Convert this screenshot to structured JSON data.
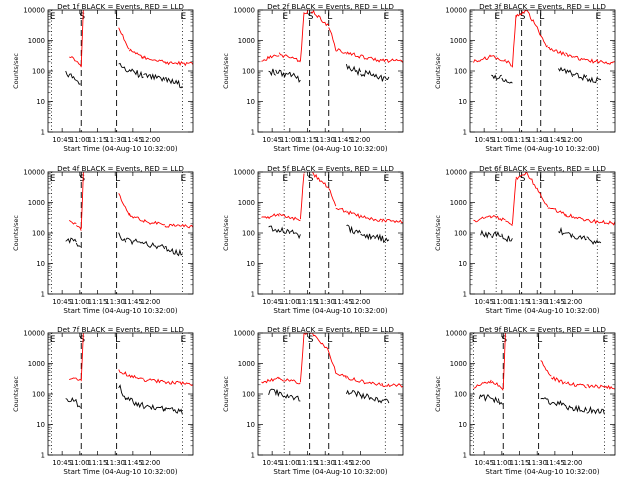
{
  "figure": {
    "colors": {
      "events": "#000000",
      "lld": "#ff0000",
      "axes": "#000000",
      "background": "#ffffff"
    },
    "time_ticks": [
      "10:45",
      "11:00",
      "11:15",
      "11:30",
      "11:45",
      "12:00"
    ],
    "y_ticks": [
      "1",
      "10",
      "100",
      "1000",
      "10000"
    ],
    "ylabel": "Counts/sec",
    "xlabel": "Start Time (04-Aug-10 10:32:00)",
    "markers": [
      "E",
      "S",
      "L"
    ]
  },
  "chart_data": [
    {
      "type": "line",
      "title": "Det 1f BLACK = Events, RED = LLD",
      "xlim": [
        10.55,
        12.6
      ],
      "ylim": [
        1,
        10000
      ],
      "yscale": "log",
      "marker_lines": {
        "E": [
          10.6,
          12.45
        ],
        "S": [
          11.02
        ],
        "L": [
          11.52
        ]
      },
      "series": [
        {
          "name": "Events",
          "x": [
            10.68,
            10.8,
            10.95,
            11.01,
            11.04,
            11.5,
            11.55,
            11.65,
            11.9,
            12.2,
            12.45
          ],
          "y": [
            null,
            80,
            60,
            40,
            null,
            null,
            150,
            110,
            70,
            50,
            35
          ]
        },
        {
          "name": "LLD",
          "x": [
            10.6,
            10.85,
            10.95,
            11.02,
            11.05,
            11.15,
            11.4,
            11.55,
            11.7,
            11.9,
            12.2,
            12.6
          ],
          "y": [
            null,
            300,
            220,
            130,
            12000,
            null,
            null,
            2500,
            500,
            280,
            190,
            170
          ]
        }
      ]
    },
    {
      "type": "line",
      "title": "Det 2f BLACK = Events, RED = LLD",
      "xlim": [
        10.55,
        12.6
      ],
      "ylim": [
        1,
        10000
      ],
      "yscale": "log",
      "marker_lines": {
        "E": [
          10.92,
          12.35
        ],
        "S": [
          11.28
        ],
        "L": [
          11.55
        ]
      },
      "series": [
        {
          "name": "Events",
          "x": [
            10.7,
            10.8,
            11.0,
            11.15,
            11.2,
            11.7,
            11.8,
            12.0,
            12.2,
            12.4
          ],
          "y": [
            100,
            90,
            80,
            50,
            null,
            null,
            140,
            90,
            70,
            50
          ]
        },
        {
          "name": "LLD",
          "x": [
            10.6,
            10.85,
            11.0,
            11.15,
            11.2,
            11.3,
            11.55,
            11.65,
            11.8,
            12.0,
            12.3,
            12.6
          ],
          "y": [
            230,
            350,
            280,
            200,
            8000,
            10000,
            3000,
            500,
            400,
            300,
            220,
            210
          ]
        }
      ]
    },
    {
      "type": "line",
      "title": "Det 3f BLACK = Events, RED = LLD",
      "xlim": [
        10.55,
        12.6
      ],
      "ylim": [
        1,
        10000
      ],
      "yscale": "log",
      "marker_lines": {
        "E": [
          10.92,
          12.35
        ],
        "S": [
          11.28
        ],
        "L": [
          11.55
        ]
      },
      "series": [
        {
          "name": "Events",
          "x": [
            10.7,
            10.85,
            11.0,
            11.15,
            11.2,
            11.7,
            11.8,
            12.0,
            12.2,
            12.4
          ],
          "y": [
            null,
            70,
            60,
            40,
            null,
            null,
            120,
            80,
            60,
            45
          ]
        },
        {
          "name": "LLD",
          "x": [
            10.6,
            10.85,
            11.05,
            11.15,
            11.2,
            11.35,
            11.65,
            11.9,
            12.2,
            12.6
          ],
          "y": [
            200,
            300,
            220,
            150,
            6000,
            10000,
            600,
            350,
            220,
            180
          ]
        }
      ]
    },
    {
      "type": "line",
      "title": "Det 4f BLACK = Events, RED = LLD",
      "xlim": [
        10.55,
        12.6
      ],
      "ylim": [
        1,
        10000
      ],
      "yscale": "log",
      "marker_lines": {
        "E": [
          10.6,
          12.45
        ],
        "S": [
          11.02
        ],
        "L": [
          11.52
        ]
      },
      "series": [
        {
          "name": "Events",
          "x": [
            10.68,
            10.8,
            10.95,
            11.01,
            11.04,
            11.5,
            11.55,
            11.65,
            11.9,
            12.2,
            12.45
          ],
          "y": [
            null,
            60,
            50,
            30,
            null,
            null,
            80,
            60,
            45,
            35,
            20
          ]
        },
        {
          "name": "LLD",
          "x": [
            10.6,
            10.85,
            10.95,
            11.02,
            11.05,
            11.15,
            11.4,
            11.55,
            11.7,
            11.9,
            12.2,
            12.6
          ],
          "y": [
            null,
            250,
            200,
            120,
            10000,
            null,
            null,
            2000,
            400,
            250,
            180,
            160
          ]
        }
      ]
    },
    {
      "type": "line",
      "title": "Det 5f BLACK = Events, RED = LLD",
      "xlim": [
        10.55,
        12.6
      ],
      "ylim": [
        1,
        10000
      ],
      "yscale": "log",
      "marker_lines": {
        "E": [
          10.92,
          12.35
        ],
        "S": [
          11.28
        ],
        "L": [
          11.55
        ]
      },
      "series": [
        {
          "name": "Events",
          "x": [
            10.7,
            10.8,
            11.0,
            11.15,
            11.2,
            11.7,
            11.8,
            12.0,
            12.2,
            12.4
          ],
          "y": [
            150,
            140,
            110,
            70,
            null,
            null,
            150,
            100,
            70,
            60
          ]
        },
        {
          "name": "LLD",
          "x": [
            10.6,
            10.85,
            11.0,
            11.15,
            11.2,
            11.3,
            11.55,
            11.65,
            11.8,
            12.0,
            12.3,
            12.6
          ],
          "y": [
            300,
            400,
            330,
            250,
            10000,
            10000,
            3000,
            700,
            500,
            350,
            250,
            230
          ]
        }
      ]
    },
    {
      "type": "line",
      "title": "Det 6f BLACK = Events, RED = LLD",
      "xlim": [
        10.55,
        12.6
      ],
      "ylim": [
        1,
        10000
      ],
      "yscale": "log",
      "marker_lines": {
        "E": [
          10.92,
          12.35
        ],
        "S": [
          11.28
        ],
        "L": [
          11.55
        ]
      },
      "series": [
        {
          "name": "Events",
          "x": [
            10.7,
            10.85,
            11.0,
            11.15,
            11.2,
            11.7,
            11.8,
            12.0,
            12.2,
            12.4
          ],
          "y": [
            100,
            90,
            80,
            55,
            null,
            null,
            120,
            80,
            60,
            45
          ]
        },
        {
          "name": "LLD",
          "x": [
            10.6,
            10.85,
            11.05,
            11.15,
            11.2,
            11.35,
            11.65,
            11.9,
            12.2,
            12.6
          ],
          "y": [
            250,
            350,
            260,
            180,
            6000,
            10000,
            700,
            400,
            250,
            210
          ]
        }
      ]
    },
    {
      "type": "line",
      "title": "Det 7f BLACK = Events, RED = LLD",
      "xlim": [
        10.55,
        12.6
      ],
      "ylim": [
        1,
        10000
      ],
      "yscale": "log",
      "marker_lines": {
        "E": [
          10.6,
          12.45
        ],
        "S": [
          11.02
        ],
        "L": [
          11.52
        ]
      },
      "series": [
        {
          "name": "Events",
          "x": [
            10.68,
            10.8,
            10.95,
            11.01,
            11.04,
            11.5,
            11.55,
            11.65,
            11.9,
            12.2,
            12.45
          ],
          "y": [
            null,
            70,
            55,
            35,
            null,
            null,
            200,
            70,
            40,
            30,
            25
          ]
        },
        {
          "name": "LLD",
          "x": [
            10.6,
            10.85,
            10.95,
            11.02,
            11.05,
            11.15,
            11.4,
            11.55,
            11.7,
            11.9,
            12.2,
            12.6
          ],
          "y": [
            null,
            320,
            300,
            280,
            10000,
            null,
            null,
            600,
            400,
            300,
            250,
            210
          ]
        }
      ]
    },
    {
      "type": "line",
      "title": "Det 8f BLACK = Events, RED = LLD",
      "xlim": [
        10.55,
        12.6
      ],
      "ylim": [
        1,
        10000
      ],
      "yscale": "log",
      "marker_lines": {
        "E": [
          10.92,
          12.35
        ],
        "S": [
          11.28
        ],
        "L": [
          11.55
        ]
      },
      "series": [
        {
          "name": "Events",
          "x": [
            10.7,
            10.8,
            11.0,
            11.15,
            11.2,
            11.7,
            11.8,
            12.0,
            12.2,
            12.4
          ],
          "y": [
            120,
            110,
            90,
            60,
            null,
            null,
            130,
            90,
            70,
            55
          ]
        },
        {
          "name": "LLD",
          "x": [
            10.6,
            10.85,
            11.0,
            11.15,
            11.2,
            11.3,
            11.55,
            11.65,
            11.8,
            12.0,
            12.3,
            12.6
          ],
          "y": [
            250,
            320,
            280,
            220,
            10000,
            10000,
            2500,
            500,
            350,
            260,
            200,
            190
          ]
        }
      ]
    },
    {
      "type": "line",
      "title": "Det 9f BLACK = Events, RED = LLD",
      "xlim": [
        10.55,
        12.6
      ],
      "ylim": [
        1,
        10000
      ],
      "yscale": "log",
      "marker_lines": {
        "E": [
          10.6,
          12.45
        ],
        "S": [
          11.02
        ],
        "L": [
          11.52
        ]
      },
      "series": [
        {
          "name": "Events",
          "x": [
            10.68,
            10.8,
            10.95,
            11.01,
            11.04,
            11.5,
            11.55,
            11.65,
            11.9,
            12.2,
            12.45
          ],
          "y": [
            70,
            80,
            60,
            40,
            null,
            null,
            80,
            60,
            40,
            30,
            25
          ]
        },
        {
          "name": "LLD",
          "x": [
            10.6,
            10.85,
            10.95,
            11.02,
            11.05,
            11.15,
            11.4,
            11.55,
            11.7,
            11.9,
            12.2,
            12.6
          ],
          "y": [
            170,
            260,
            200,
            150,
            10000,
            null,
            null,
            1200,
            350,
            220,
            180,
            160
          ]
        }
      ]
    }
  ]
}
